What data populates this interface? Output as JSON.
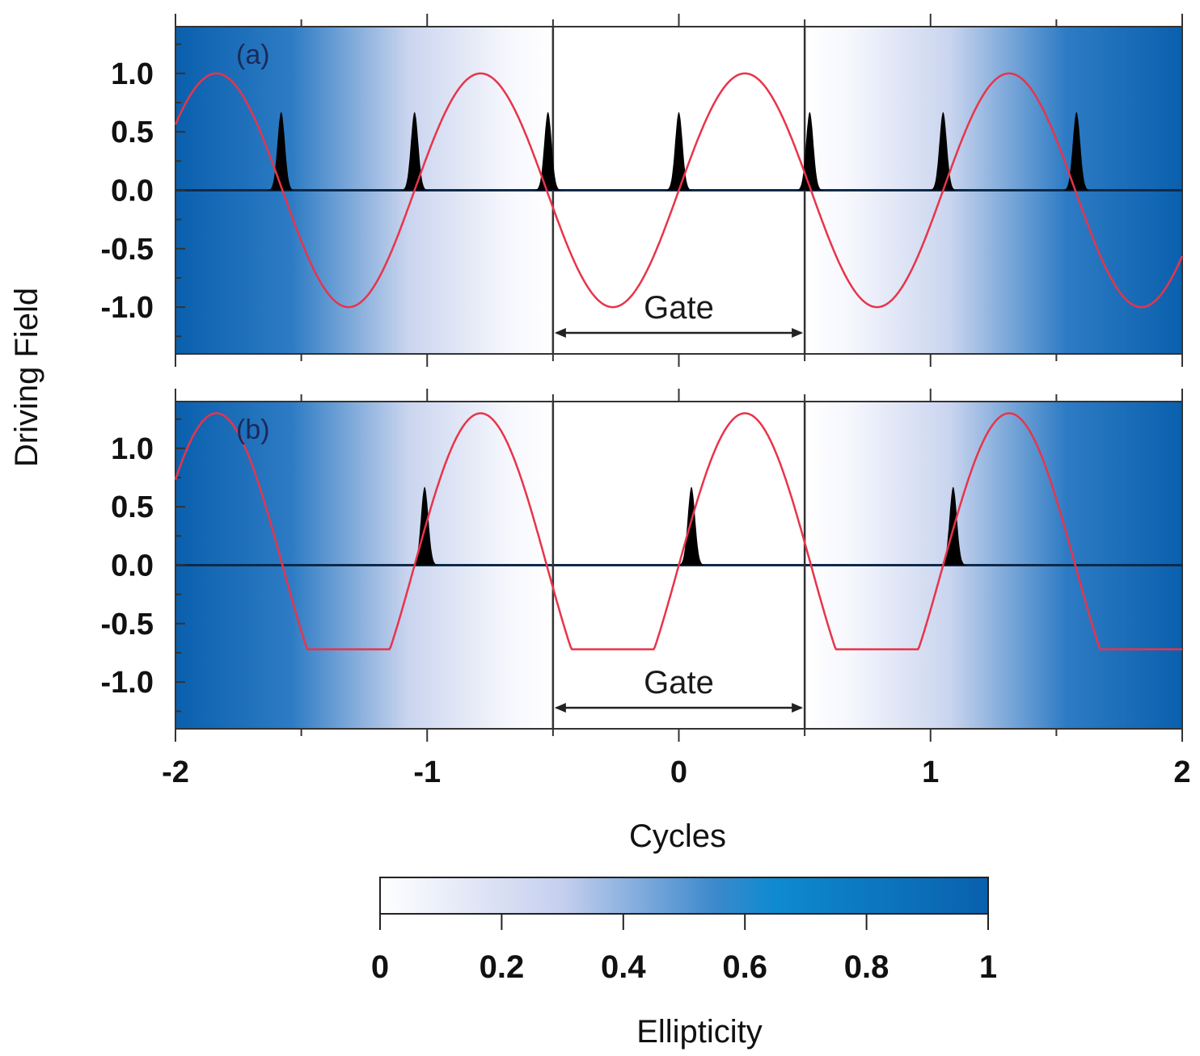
{
  "chart_data": {
    "type": "line",
    "ylabel": "Driving Field",
    "xlabel": "Cycles",
    "xlim": [
      -2,
      2
    ],
    "ylim": [
      -1.4,
      1.4
    ],
    "x_ticks": [
      "-2",
      "-1",
      "0",
      "1",
      "2"
    ],
    "y_ticks": [
      "1.0",
      "0.5",
      "0.0",
      "-0.5",
      "-1.0"
    ],
    "y_tick_values": [
      1.0,
      0.5,
      0.0,
      -0.5,
      -1.0
    ],
    "gate": {
      "label": "Gate",
      "start": -0.5,
      "end": 0.5
    },
    "background": {
      "meaning": "ellipticity",
      "white_region": [
        -0.5,
        0.5
      ],
      "saturated_beyond": 1.5
    },
    "line_color": "#e8344a",
    "pulse_color": "#000000",
    "panels": [
      {
        "label": "(a)",
        "field": "sine",
        "amplitude": 1.0,
        "period": 1.05,
        "phase_zero": 0.0,
        "pulse_height": 0.67,
        "pulses_x": [
          -1.58,
          -1.05,
          -0.52,
          0.0,
          0.52,
          1.05,
          1.58
        ],
        "gate_label_y": -1.0
      },
      {
        "label": "(b)",
        "field": "clipped-sine",
        "amplitude": 1.3,
        "clip_min": -0.72,
        "period": 1.05,
        "phase_zero": 0.0,
        "pulse_height": 0.67,
        "pulses_x": [
          -1.01,
          0.05,
          1.09
        ],
        "gate_label_y": -1.0
      }
    ],
    "colorbar": {
      "title": "Ellipticity",
      "ticks": [
        "0",
        "0.2",
        "0.4",
        "0.6",
        "0.8",
        "1"
      ],
      "tick_values": [
        0,
        0.2,
        0.4,
        0.6,
        0.8,
        1
      ],
      "color_low": "#ffffff",
      "color_high": "#0a60ad"
    }
  }
}
